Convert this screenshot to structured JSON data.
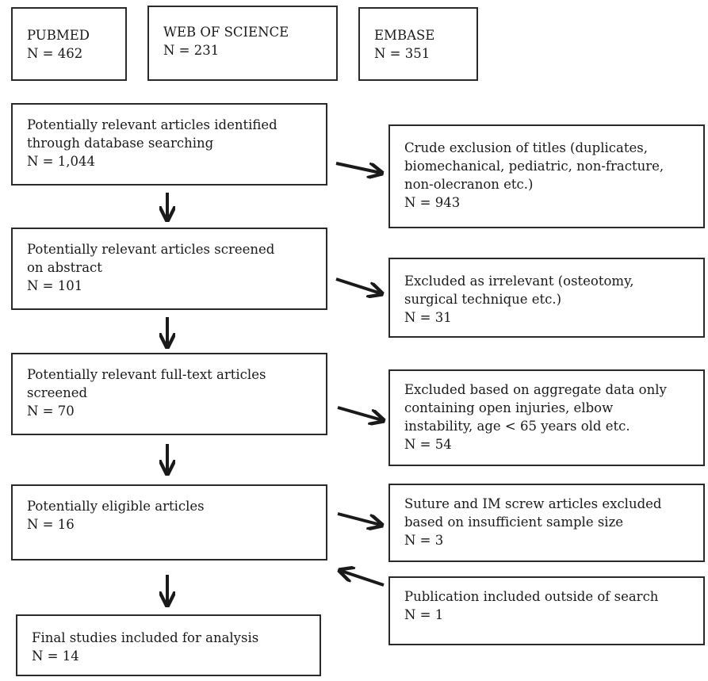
{
  "databases": [
    {
      "name": "PUBMED",
      "count": "N = 462"
    },
    {
      "name": "WEB OF SCIENCE",
      "count": "N = 231"
    },
    {
      "name": "EMBASE",
      "count": "N = 351"
    }
  ],
  "stages": [
    {
      "lines": [
        "Potentially relevant articles identified",
        "through  database searching"
      ],
      "count": "N = 1,044"
    },
    {
      "lines": [
        "Potentially relevant articles screened",
        "on abstract"
      ],
      "count": "N = 101"
    },
    {
      "lines": [
        "Potentially relevant full-text articles",
        "screened"
      ],
      "count": "N = 70"
    },
    {
      "lines": [
        "Potentially eligible articles"
      ],
      "count": "N = 16"
    },
    {
      "lines": [
        "Final studies included for analysis"
      ],
      "count": "N = 14"
    }
  ],
  "exclusions": [
    {
      "lines": [
        "Crude exclusion of titles (duplicates,",
        "biomechanical, pediatric, non-fracture,",
        "non-olecranon etc.)"
      ],
      "count": "N = 943"
    },
    {
      "lines": [
        "Excluded as irrelevant (osteotomy,",
        "surgical technique etc.)"
      ],
      "count": "N = 31"
    },
    {
      "lines": [
        "Excluded based on aggregate data only",
        "containing open injuries, elbow",
        "instability, age < 65 years old etc."
      ],
      "count": "N = 54"
    },
    {
      "lines": [
        "Suture and IM screw articles excluded",
        "based on insufficient sample size"
      ],
      "count": "N = 3"
    }
  ],
  "addition": {
    "lines": [
      "Publication included outside of search"
    ],
    "count": "N = 1"
  }
}
